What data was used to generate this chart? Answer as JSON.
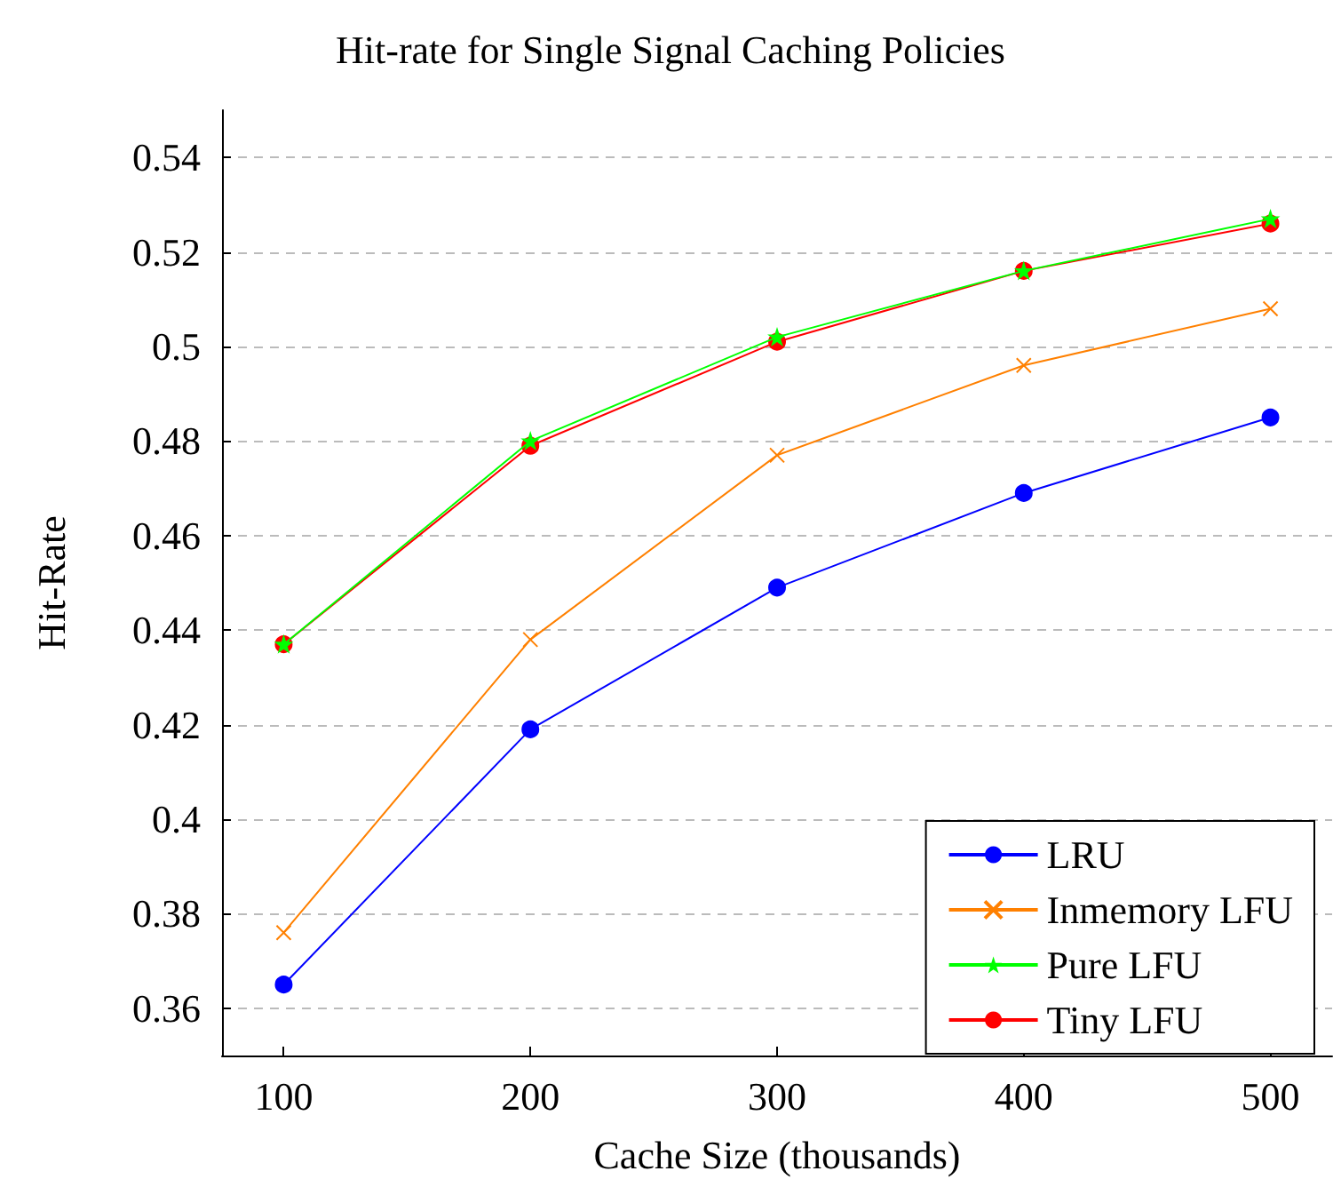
{
  "chart_data": {
    "type": "line",
    "title": "Hit-rate for Single Signal Caching Policies",
    "xlabel": "Cache Size (thousands)",
    "ylabel": "Hit-Rate",
    "x": [
      100,
      200,
      300,
      400,
      500
    ],
    "series": [
      {
        "name": "LRU",
        "color": "#0000ff",
        "marker": "circle",
        "values": [
          0.365,
          0.419,
          0.449,
          0.469,
          0.485
        ]
      },
      {
        "name": "Inmemory LFU",
        "color": "#ff8000",
        "marker": "cross",
        "values": [
          0.376,
          0.438,
          0.477,
          0.496,
          0.508
        ]
      },
      {
        "name": "Pure LFU",
        "color": "#00ff00",
        "marker": "star",
        "values": [
          0.437,
          0.48,
          0.502,
          0.516,
          0.527
        ]
      },
      {
        "name": "Tiny LFU",
        "color": "#ff0000",
        "marker": "circle",
        "values": [
          0.437,
          0.479,
          0.501,
          0.516,
          0.526
        ]
      }
    ],
    "xlim": [
      75,
      525
    ],
    "xticks": [
      100,
      200,
      300,
      400,
      500
    ],
    "ylim": [
      0.35,
      0.55
    ],
    "yticks": [
      0.36,
      0.38,
      0.4,
      0.42,
      0.44,
      0.46,
      0.48,
      0.5,
      0.52,
      0.54
    ],
    "grid": "y",
    "legend": "bottom right",
    "line_style": "solid"
  }
}
